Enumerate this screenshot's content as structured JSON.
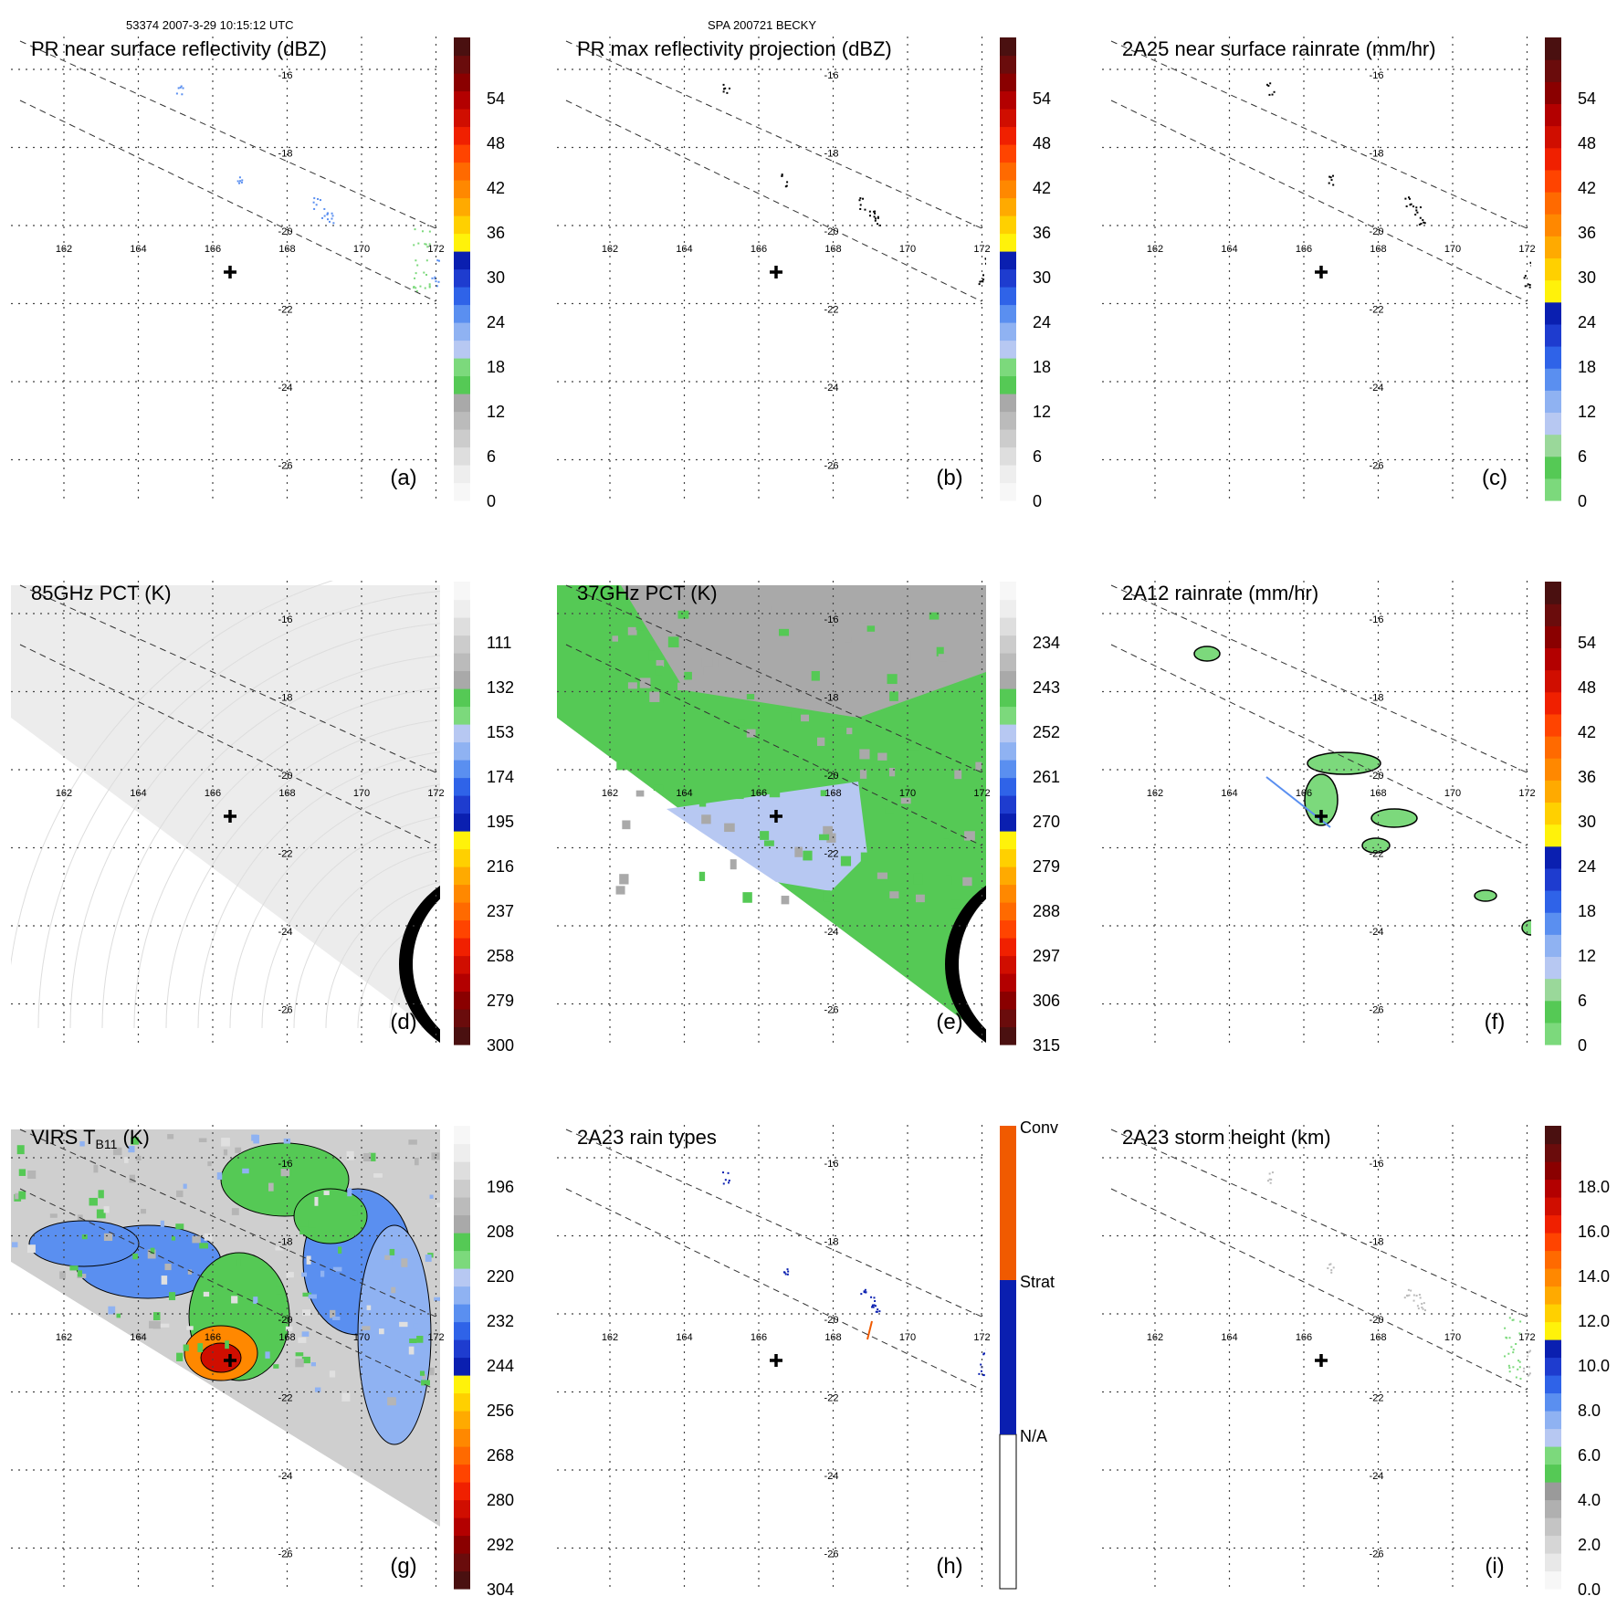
{
  "header": {
    "orbit_time": "53374 2007-3-29 10:15:12 UTC",
    "storm": "SPA 200721 BECKY"
  },
  "axes": {
    "lon_ticks": [
      "162",
      "164",
      "166",
      "168",
      "170",
      "172"
    ],
    "lat_ticks": [
      "-16",
      "-18",
      "-20",
      "-22",
      "-24",
      "-26"
    ]
  },
  "colors": {
    "grid": "#444444",
    "swath_dash": "#333333",
    "black": "#000000",
    "white": "#ffffff"
  },
  "palettes": {
    "dbz": [
      "#f7f7f7",
      "#eeeeee",
      "#dedede",
      "#cccccc",
      "#bbbbbb",
      "#a9a9a9",
      "#55c955",
      "#7cd97c",
      "#b7c8f2",
      "#8fb2f2",
      "#5a8ff0",
      "#2f63e8",
      "#1e3ccf",
      "#0a1fb0",
      "#fff20a",
      "#ffd000",
      "#ffaa00",
      "#ff8800",
      "#ff6a00",
      "#ff4400",
      "#f02000",
      "#d00e00",
      "#b30000",
      "#8a0000",
      "#6a0c0c",
      "#4a1010"
    ],
    "pct": [
      "#4a1010",
      "#6a0c0c",
      "#8a0000",
      "#b30000",
      "#d00e00",
      "#f02000",
      "#ff4400",
      "#ff6a00",
      "#ff8800",
      "#ffaa00",
      "#ffd000",
      "#fff20a",
      "#0a1fb0",
      "#1e3ccf",
      "#2f63e8",
      "#5a8ff0",
      "#8fb2f2",
      "#b7c8f2",
      "#7cd97c",
      "#55c955",
      "#a9a9a9",
      "#bbbbbb",
      "#cccccc",
      "#dedede",
      "#eeeeee",
      "#f7f7f7"
    ],
    "rain": [
      "#7cd97c",
      "#55c955",
      "#9ad89a",
      "#b7c8f2",
      "#8fb2f2",
      "#5a8ff0",
      "#2f63e8",
      "#1e3ccf",
      "#0a1fb0",
      "#fff20a",
      "#ffd000",
      "#ffaa00",
      "#ff8800",
      "#ff6a00",
      "#ff4400",
      "#f02000",
      "#d00e00",
      "#b30000",
      "#8a0000",
      "#6a0c0c",
      "#4a1010"
    ],
    "height": [
      "#f7f7f7",
      "#e8e8e8",
      "#d6d6d6",
      "#c4c4c4",
      "#b0b0b0",
      "#9a9a9a",
      "#55c955",
      "#7cd97c",
      "#b7c8f2",
      "#8fb2f2",
      "#5a8ff0",
      "#2f63e8",
      "#1e3ccf",
      "#0a1fb0",
      "#fff20a",
      "#ffd000",
      "#ffaa00",
      "#ff8800",
      "#ff6a00",
      "#ff4400",
      "#f02000",
      "#d00e00",
      "#b30000",
      "#8a0000",
      "#6a0c0c",
      "#4a1010"
    ],
    "raintype": [
      "#ffffff",
      "#0a1fb0",
      "#f05a00"
    ]
  },
  "panels": [
    {
      "id": "a",
      "title": "PR near surface reflectivity (dBZ)",
      "label": "(a)",
      "palette": "dbz",
      "ticks": [
        "0",
        "6",
        "12",
        "18",
        "24",
        "30",
        "36",
        "42",
        "48",
        "54"
      ],
      "field": "pr_sparse"
    },
    {
      "id": "b",
      "title": "PR max reflectivity projection (dBZ)",
      "label": "(b)",
      "palette": "dbz",
      "ticks": [
        "0",
        "6",
        "12",
        "18",
        "24",
        "30",
        "36",
        "42",
        "48",
        "54"
      ],
      "field": "pr_max"
    },
    {
      "id": "c",
      "title": "2A25 near surface rainrate (mm/hr)",
      "label": "(c)",
      "palette": "rain",
      "ticks": [
        "0",
        "6",
        "12",
        "18",
        "24",
        "30",
        "36",
        "42",
        "48",
        "54"
      ],
      "field": "pr_rain"
    },
    {
      "id": "d",
      "title": "85GHz PCT (K)",
      "label": "(d)",
      "palette": "pct",
      "ticks": [
        "300",
        "279",
        "258",
        "237",
        "216",
        "195",
        "174",
        "153",
        "132",
        "111"
      ],
      "field": "pct85"
    },
    {
      "id": "e",
      "title": "37GHz PCT (K)",
      "label": "(e)",
      "palette": "pct",
      "ticks": [
        "315",
        "306",
        "297",
        "288",
        "279",
        "270",
        "261",
        "252",
        "243",
        "234"
      ],
      "field": "pct37"
    },
    {
      "id": "f",
      "title": "2A12 rainrate (mm/hr)",
      "label": "(f)",
      "palette": "rain",
      "ticks": [
        "0",
        "6",
        "12",
        "18",
        "24",
        "30",
        "36",
        "42",
        "48",
        "54"
      ],
      "field": "tmi_rain"
    },
    {
      "id": "g",
      "title": "VIRS T",
      "title_sub": "B11",
      "title_end": " (K)",
      "label": "(g)",
      "palette": "pct",
      "ticks": [
        "304",
        "292",
        "280",
        "268",
        "256",
        "244",
        "232",
        "220",
        "208",
        "196"
      ],
      "field": "virs"
    },
    {
      "id": "h",
      "title": "2A23 rain types",
      "label": "(h)",
      "palette": "raintype",
      "ticks": [
        "N/A",
        "Strat",
        "Conv"
      ],
      "field": "raintype"
    },
    {
      "id": "i",
      "title": "2A23 storm height (km)",
      "label": "(i)",
      "palette": "height",
      "ticks": [
        "0.0",
        "2.0",
        "4.0",
        "6.0",
        "8.0",
        "10.0",
        "12.0",
        "14.0",
        "16.0",
        "18.0"
      ],
      "field": "stormht"
    }
  ]
}
